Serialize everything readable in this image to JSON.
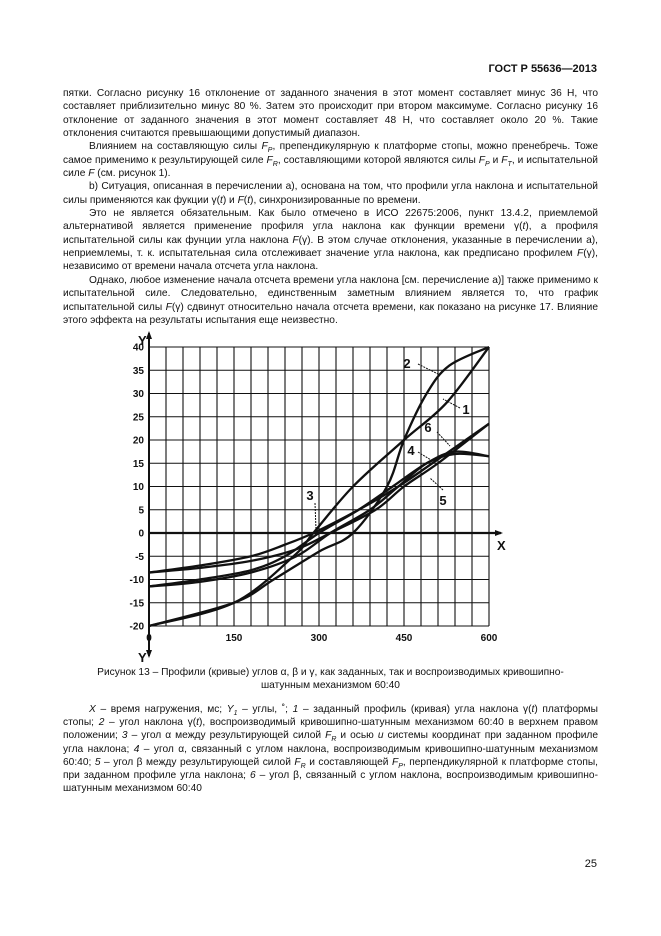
{
  "header": {
    "doc_id": "ГОСТ Р 55636—2013"
  },
  "body": {
    "paragraphs": [
      {
        "first": true,
        "segments": [
          {
            "t": "пятки. Согласно рисунку 16 отклонение от заданного значения в этот момент составляет минус 36 Н, что составляет приблизительно минус  80 %. Затем это происходит при втором максимуме. Согласно рисунку 16 отклонение от заданного значения в этот момент составляет 48 Н, что составляет около 20 %. Такие отклонения считаются превышающими допустимый диапазон."
          }
        ]
      },
      {
        "segments": [
          {
            "t": "Влиянием на составляющую силы "
          },
          {
            "v": "F",
            "sub": "P"
          },
          {
            "t": ", препендикулярную к платформе стопы, можно пренебречь. Тоже самое применимо к результирующей силе "
          },
          {
            "v": "F",
            "sub": "R"
          },
          {
            "t": ", составляющими которой являются силы "
          },
          {
            "v": "F",
            "sub": "P"
          },
          {
            "t": " и "
          },
          {
            "v": "F",
            "sub": "T"
          },
          {
            "t": ", и испытательной силе "
          },
          {
            "v": "F"
          },
          {
            "t": " (см. рисунок 1)."
          }
        ]
      },
      {
        "segments": [
          {
            "t": "b)  Ситуация, описанная в перечислении а), основана на том, что профили угла наклона и испытательной силы применяются как фукции γ("
          },
          {
            "v": "t"
          },
          {
            "t": ") и "
          },
          {
            "v": "F"
          },
          {
            "t": "("
          },
          {
            "v": "t"
          },
          {
            "t": "), синхронизированные по времени."
          }
        ]
      },
      {
        "segments": [
          {
            "t": "Это не является обязательным. Как было отмечено в ИСО 22675:2006, пункт 13.4.2, приемлемой альтернативой является применение профиля угла наклона как функции времени γ("
          },
          {
            "v": "t"
          },
          {
            "t": "), а профиля испытательной силы как фунции угла наклона "
          },
          {
            "v": "F"
          },
          {
            "t": "(γ). В этом случае отклонения, указанные в перечислении а), неприемлемы, т. к. испытательная сила отслеживает значение угла наклона, как предписано профилем "
          },
          {
            "v": "F"
          },
          {
            "t": "(γ), независимо от времени начала отсчета угла наклона."
          }
        ]
      },
      {
        "segments": [
          {
            "t": "Однако, любое изменение начала отсчета времени угла наклона [см. перечисление а)] также применимо к испытательной силе. Следовательно, единственным заметным влиянием является то, что график испытательной силы "
          },
          {
            "v": "F"
          },
          {
            "t": "(γ) сдвинут относительно начала отсчета времени, как показано на рисунке 17. Влияние этого эффекта на результаты испытания еще неизвестно."
          }
        ]
      }
    ]
  },
  "chart_data": {
    "type": "line",
    "xlabel": "X",
    "ylabel": "Y",
    "ylabel_bottom": "Y",
    "xlim": [
      0,
      600
    ],
    "ylim": [
      -20,
      40
    ],
    "xticks": [
      "0",
      "150",
      "300",
      "450",
      "600"
    ],
    "yticks": [
      "40",
      "35",
      "30",
      "25",
      "20",
      "15",
      "10",
      "5",
      "0",
      "-5",
      "-10",
      "-15",
      "-20"
    ],
    "grid": true,
    "series": [
      {
        "name": "1",
        "x": [
          0,
          150,
          255,
          290,
          360,
          450,
          525,
          600
        ],
        "y": [
          -20,
          -15,
          -5,
          0,
          10,
          20,
          28,
          40
        ]
      },
      {
        "name": "2",
        "x": [
          0,
          150,
          220,
          300,
          360,
          420,
          450,
          490,
          530,
          600
        ],
        "y": [
          -20,
          -15,
          -10,
          -4,
          0,
          10,
          20,
          30,
          36,
          40
        ]
      },
      {
        "name": "3",
        "x": [
          0,
          90,
          180,
          240,
          290,
          370,
          440,
          500,
          600
        ],
        "y": [
          -8.5,
          -7,
          -5,
          -2.5,
          0,
          5,
          10,
          15,
          23.5
        ]
      },
      {
        "name": "4",
        "x": [
          0,
          90,
          180,
          240,
          300,
          370,
          430,
          490,
          540,
          600
        ],
        "y": [
          -11.5,
          -10,
          -8,
          -5,
          0,
          5,
          10,
          15,
          17.5,
          16.5
        ]
      },
      {
        "name": "5",
        "x": [
          0,
          90,
          180,
          260,
          320,
          400,
          450,
          510,
          600
        ],
        "y": [
          -8.5,
          -7.5,
          -6,
          -3.5,
          0,
          5,
          10,
          15,
          23.5
        ]
      },
      {
        "name": "6",
        "x": [
          0,
          90,
          180,
          260,
          320,
          390,
          440,
          490,
          540,
          600
        ],
        "y": [
          -11.5,
          -10.5,
          -8.5,
          -5,
          0,
          5,
          10,
          15,
          17,
          16.5
        ]
      }
    ]
  },
  "figure": {
    "caption_line1": "Рисунок 13 – Профили (кривые) углов α, β и γ, как заданных, так и воспроизводимых кривошипно-",
    "caption_line2": "шатунным механизмом 60:40"
  },
  "legend": {
    "segments": [
      {
        "v": "X"
      },
      {
        "t": " – время нагружения, мс; "
      },
      {
        "v": "Y",
        "sub": "1"
      },
      {
        "t": " – углы, ˚; "
      },
      {
        "v": "1"
      },
      {
        "t": "            – заданный профиль (кривая) угла наклона γ("
      },
      {
        "v": "t"
      },
      {
        "t": ") платформы стопы; "
      },
      {
        "v": "2"
      },
      {
        "t": "   –  угол  наклона  γ("
      },
      {
        "v": "t"
      },
      {
        "t": "),  воспроизводимый  кривошипно-шатунным  механизмом 60:40 в верхнем правом положении; "
      },
      {
        "v": "3"
      },
      {
        "t": " – угол α между результирующей силой "
      },
      {
        "v": "F",
        "sub": "R"
      },
      {
        "t": " и осью "
      },
      {
        "v": "u"
      },
      {
        "t": " системы координат при заданном профиле угла наклона; "
      },
      {
        "v": "4"
      },
      {
        "t": " –  угол α, связанный с углом наклона, воспроизводимым кривошипно-шатунным механизмом 60:40; "
      },
      {
        "v": "5"
      },
      {
        "t": "   – угол β между результирующей силой "
      },
      {
        "v": "F",
        "sub": "R"
      },
      {
        "t": " и составляющей "
      },
      {
        "v": "F",
        "sub": "P"
      },
      {
        "t": ", перпендикулярной к платформе стопы, при заданном профиле угла наклона; "
      },
      {
        "v": "6"
      },
      {
        "t": "        – угол β, связанный с углом наклона, воспроизводимым кривошипно-шатунным механизмом 60:40"
      }
    ]
  },
  "page_number": "25"
}
